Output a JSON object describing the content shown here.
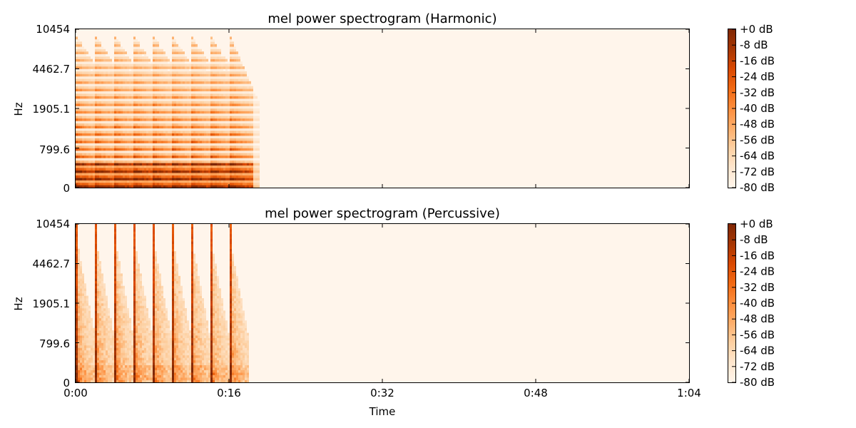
{
  "colors": {
    "colormap": [
      "#fff5eb",
      "#fee6ce",
      "#fdd0a2",
      "#fdae6b",
      "#fd8d3c",
      "#f16913",
      "#d94801",
      "#a63603",
      "#7f2704"
    ],
    "colormap_reds": [
      "#fff5f0",
      "#fee0d2",
      "#fcbba1",
      "#fc9272",
      "#fb6a4a",
      "#ef3b2c",
      "#cb181d",
      "#a50f15",
      "#67000d"
    ],
    "background": "#fff5eb",
    "axis": "#000000"
  },
  "chart_data": [
    {
      "type": "heatmap",
      "title": "mel power spectrogram (Harmonic)",
      "ylabel": "Hz",
      "yticks": [
        "0",
        "799.6",
        "1905.1",
        "4462.7",
        "10454"
      ],
      "xlabel": "",
      "xticks": [
        "0:00",
        "0:16",
        "0:32",
        "0:48",
        "1:04"
      ],
      "xlim_seconds": [
        0,
        64
      ],
      "ylim_hz": [
        0,
        10454
      ],
      "colorbar": {
        "labels": [
          "+0 dB",
          "-8 dB",
          "-16 dB",
          "-24 dB",
          "-32 dB",
          "-40 dB",
          "-48 dB",
          "-56 dB",
          "-64 dB",
          "-72 dB",
          "-80 dB"
        ],
        "range_db": [
          -80,
          0
        ]
      },
      "onsets_seconds": [
        0,
        2,
        4,
        6,
        8,
        10,
        12,
        14,
        16
      ],
      "sound_end_seconds": 19,
      "kind": "harmonic"
    },
    {
      "type": "heatmap",
      "title": "mel power spectrogram (Percussive)",
      "ylabel": "Hz",
      "yticks": [
        "0",
        "799.6",
        "1905.1",
        "4462.7",
        "10454"
      ],
      "xlabel": "Time",
      "xticks": [
        "0:00",
        "0:16",
        "0:32",
        "0:48",
        "1:04"
      ],
      "xlim_seconds": [
        0,
        64
      ],
      "ylim_hz": [
        0,
        10454
      ],
      "colorbar": {
        "labels": [
          "+0 dB",
          "-8 dB",
          "-16 dB",
          "-24 dB",
          "-32 dB",
          "-40 dB",
          "-48 dB",
          "-56 dB",
          "-64 dB",
          "-72 dB",
          "-80 dB"
        ],
        "range_db": [
          -80,
          0
        ]
      },
      "onsets_seconds": [
        0,
        2,
        4,
        6,
        8,
        10,
        12,
        14,
        16
      ],
      "sound_end_seconds": 18,
      "kind": "percussive"
    }
  ]
}
